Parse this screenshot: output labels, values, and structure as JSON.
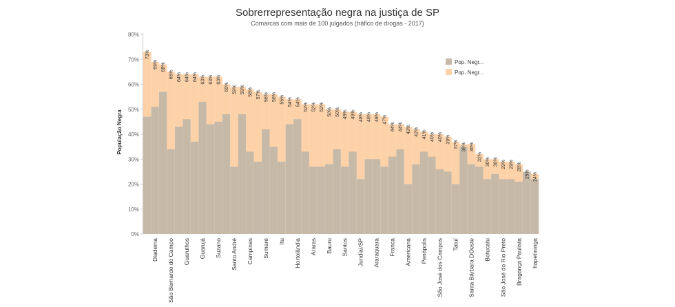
{
  "chart_data": {
    "type": "bar",
    "title": "Sobrerrepresentação negra na justiça de SP",
    "subtitle": "Comarcas com mais de 100 julgados (tráfico de drogas - 2017)",
    "ylabel": "População Negra",
    "xlabel": "",
    "ylim": [
      0,
      80
    ],
    "yticks": [
      0,
      10,
      20,
      30,
      40,
      50,
      60,
      70,
      80
    ],
    "ytick_labels": [
      "0%",
      "10%",
      "20%",
      "30%",
      "40%",
      "50%",
      "60%",
      "70%",
      "80%"
    ],
    "grid": false,
    "legend_position": "top-right",
    "series": [
      {
        "name": "Pop. Negr...",
        "color": "#c6b9a8",
        "values": [
          47,
          51,
          57,
          34,
          43,
          46,
          37,
          53,
          44,
          45,
          48,
          27,
          48,
          33,
          29,
          42,
          35,
          29,
          44,
          46,
          33,
          27,
          27,
          28,
          34,
          27,
          33,
          22,
          30,
          30,
          27,
          31,
          34,
          20,
          28,
          33,
          31,
          26,
          25,
          20,
          35,
          28,
          27,
          22,
          24,
          22,
          22,
          21,
          25,
          22
        ]
      },
      {
        "name": "Pop. Negr...",
        "color": "#fdd2a9",
        "values": [
          73,
          69,
          68,
          65,
          64,
          64,
          64,
          63,
          63,
          63,
          60,
          59,
          59,
          58,
          57,
          56,
          56,
          55,
          54,
          54,
          52,
          52,
          52,
          50,
          50,
          49,
          49,
          48,
          48,
          48,
          47,
          44,
          44,
          43,
          42,
          41,
          40,
          40,
          39,
          37,
          36,
          36,
          32,
          30,
          30,
          29,
          29,
          28,
          25,
          24
        ]
      }
    ],
    "data_labels": [
      "73%",
      "69%",
      "68%",
      "65%",
      "64%",
      "64%",
      "64%",
      "63%",
      "63%",
      "63%",
      "60%",
      "59%",
      "59%",
      "58%",
      "57%",
      "56%",
      "56%",
      "55%",
      "54%",
      "54%",
      "52%",
      "52%",
      "52%",
      "50%",
      "50%",
      "49%",
      "49%",
      "48%",
      "48%",
      "48%",
      "47%",
      "44%",
      "44%",
      "43%",
      "42%",
      "41%",
      "40%",
      "40%",
      "39%",
      "37%",
      "36%",
      "36%",
      "32%",
      "30%",
      "30%",
      "29%",
      "29%",
      "28%",
      "25%",
      "24%"
    ],
    "categories": [
      "",
      "Diadema",
      "",
      "São Bernardo do Campo",
      "",
      "Guarulhos",
      "",
      "Guarujá",
      "",
      "Suzano",
      "",
      "Santo André",
      "",
      "Campinas",
      "",
      "Sumaré",
      "",
      "Itu",
      "",
      "Hortolândia",
      "",
      "Araras",
      "",
      "Bauru",
      "",
      "Santos",
      "",
      "Jundiaí/SP",
      "",
      "Araraquara",
      "",
      "Franca",
      "",
      "Americana",
      "",
      "Penápolis",
      "",
      "São José dos Campos",
      "",
      "Tatuí",
      "",
      "Santa Bárbara DOeste",
      "",
      "Botucatu",
      "",
      "São José do Rio Preto",
      "",
      "Bragança Paulista",
      "",
      "Itapetininga"
    ]
  }
}
